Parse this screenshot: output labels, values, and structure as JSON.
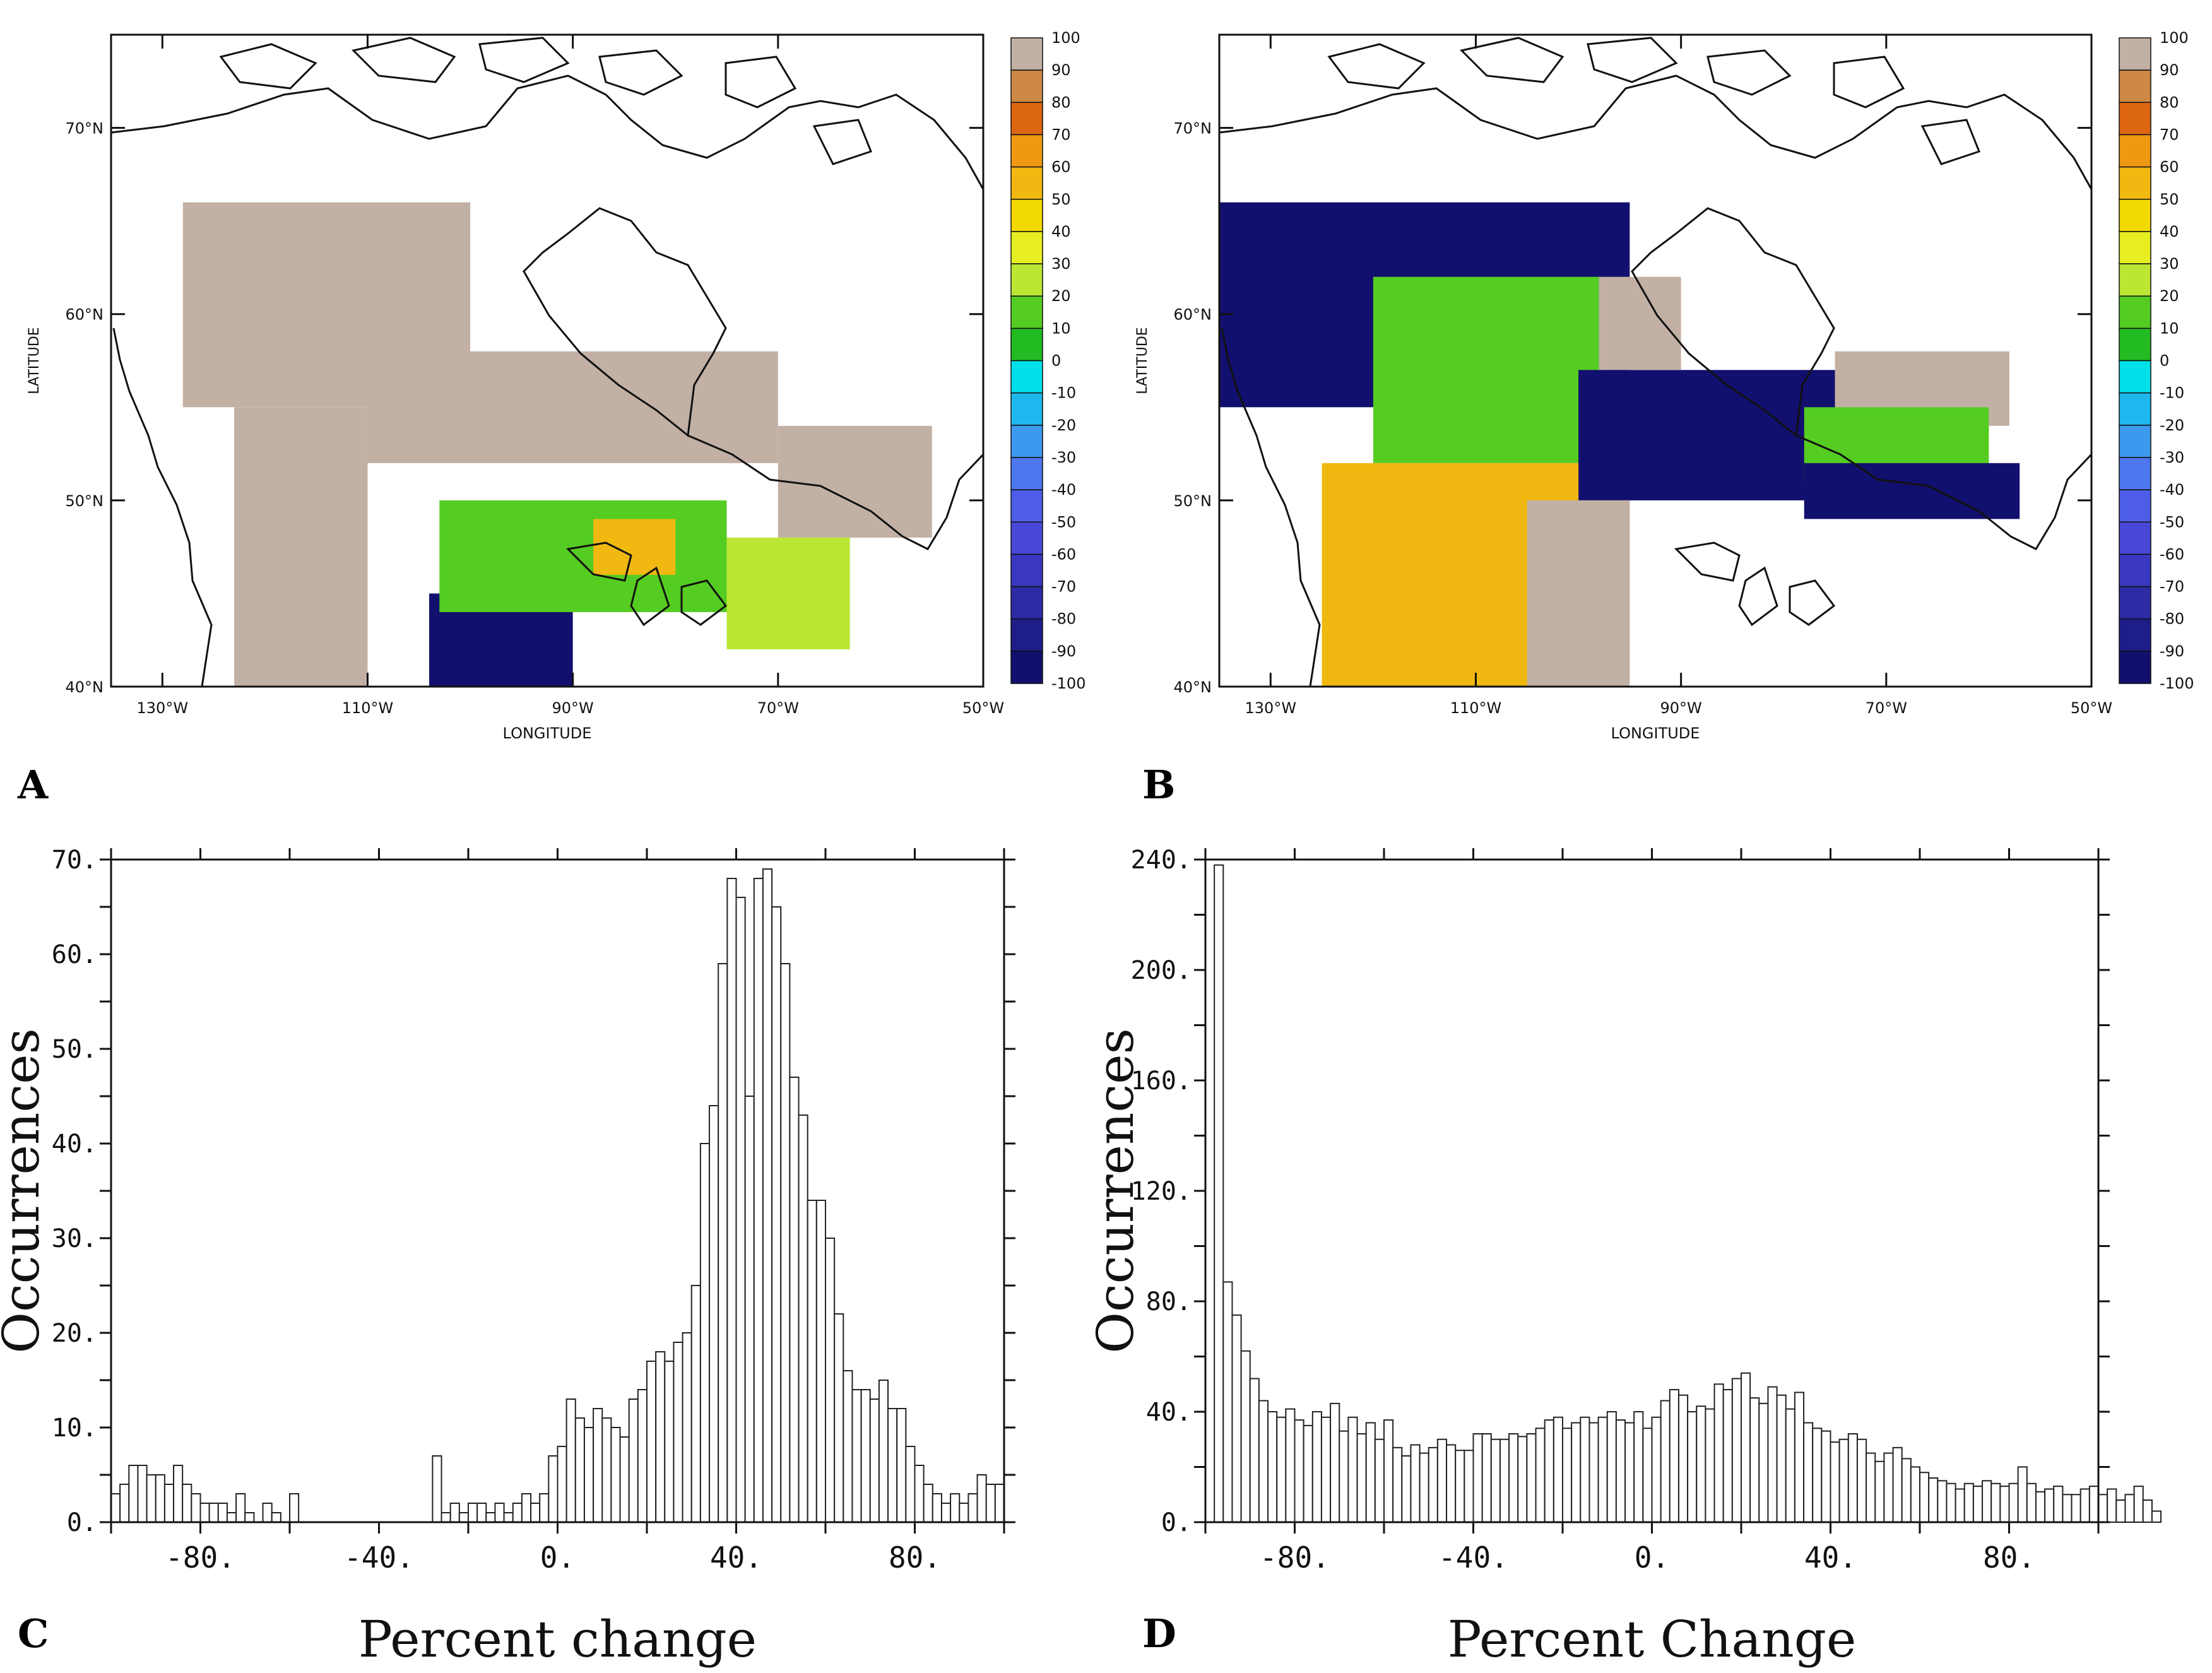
{
  "figure": {
    "panels": {
      "A": {
        "letter": "A"
      },
      "B": {
        "letter": "B"
      },
      "C": {
        "letter": "C"
      },
      "D": {
        "letter": "D"
      }
    }
  },
  "colors": {
    "land_fill": "#c2b0a4",
    "coast": "#111111",
    "bar_fill": "#ffffff",
    "bar_stroke": "#222222"
  },
  "colorbar": {
    "labels": [
      "100",
      "90",
      "80",
      "70",
      "60",
      "50",
      "40",
      "30",
      "20",
      "10",
      "0",
      "-10",
      "-20",
      "-30",
      "-40",
      "-50",
      "-60",
      "-70",
      "-80",
      "-90",
      "-100"
    ],
    "colors": [
      "#c2b0a4",
      "#cc8844",
      "#dd6611",
      "#ee9911",
      "#f0b810",
      "#f2d900",
      "#e6ee22",
      "#bbe633",
      "#55cc22",
      "#22bb22",
      "#00e0e8",
      "#1fb8ee",
      "#3d99ee",
      "#4c77ee",
      "#4d5de8",
      "#4848d8",
      "#3a38c0",
      "#2c2aa5",
      "#1f1d8a",
      "#12106e"
    ]
  },
  "chart_data": [
    {
      "type": "heatmap",
      "panel": "A",
      "xlabel": "LONGITUDE",
      "ylabel": "LATITUDE",
      "xlim": [
        -135,
        -50
      ],
      "ylim": [
        40,
        75
      ],
      "xticks": [
        -130,
        -110,
        -90,
        -70,
        -50
      ],
      "xtick_labels": [
        "130°W",
        "110°W",
        "90°W",
        "70°W",
        "50°W"
      ],
      "yticks": [
        40,
        50,
        60,
        70
      ],
      "ytick_labels": [
        "40°N",
        "50°N",
        "60°N",
        "70°N"
      ],
      "colorbar_range": [
        -100,
        100
      ],
      "colorbar_step": 10,
      "regions": [
        {
          "lon": [
            -128,
            -100
          ],
          "lat": [
            55,
            66
          ],
          "value": 100
        },
        {
          "lon": [
            -123,
            -110
          ],
          "lat": [
            40,
            55
          ],
          "value": 100
        },
        {
          "lon": [
            -110,
            -70
          ],
          "lat": [
            52,
            58
          ],
          "value": 100
        },
        {
          "lon": [
            -70,
            -55
          ],
          "lat": [
            48,
            54
          ],
          "value": 100
        },
        {
          "lon": [
            -104,
            -90
          ],
          "lat": [
            40,
            45
          ],
          "value": -100
        },
        {
          "lon": [
            -103,
            -75
          ],
          "lat": [
            44,
            50
          ],
          "value": 20
        },
        {
          "lon": [
            -88,
            -80
          ],
          "lat": [
            46,
            49
          ],
          "value": 60
        },
        {
          "lon": [
            -75,
            -63
          ],
          "lat": [
            42,
            48
          ],
          "value": 30
        }
      ]
    },
    {
      "type": "heatmap",
      "panel": "B",
      "xlabel": "LONGITUDE",
      "ylabel": "LATITUDE",
      "xlim": [
        -135,
        -50
      ],
      "ylim": [
        40,
        75
      ],
      "xticks": [
        -130,
        -110,
        -90,
        -70,
        -50
      ],
      "xtick_labels": [
        "130°W",
        "110°W",
        "90°W",
        "70°W",
        "50°W"
      ],
      "yticks": [
        40,
        50,
        60,
        70
      ],
      "ytick_labels": [
        "40°N",
        "50°N",
        "60°N",
        "70°N"
      ],
      "colorbar_range": [
        -100,
        100
      ],
      "colorbar_step": 10,
      "regions": [
        {
          "lon": [
            -135,
            -95
          ],
          "lat": [
            55,
            66
          ],
          "value": -100
        },
        {
          "lon": [
            -120,
            -98
          ],
          "lat": [
            52,
            62
          ],
          "value": 20
        },
        {
          "lon": [
            -100,
            -75
          ],
          "lat": [
            50,
            57
          ],
          "value": -100
        },
        {
          "lon": [
            -98,
            -90
          ],
          "lat": [
            57,
            62
          ],
          "value": 100
        },
        {
          "lon": [
            -125,
            -100
          ],
          "lat": [
            40,
            52
          ],
          "value": 60
        },
        {
          "lon": [
            -105,
            -95
          ],
          "lat": [
            40,
            50
          ],
          "value": 100
        },
        {
          "lon": [
            -75,
            -58
          ],
          "lat": [
            54,
            58
          ],
          "value": 100
        },
        {
          "lon": [
            -78,
            -60
          ],
          "lat": [
            51,
            55
          ],
          "value": 20
        },
        {
          "lon": [
            -78,
            -57
          ],
          "lat": [
            49,
            52
          ],
          "value": -100
        }
      ]
    },
    {
      "type": "bar",
      "panel": "C",
      "title": "",
      "xlabel": "Percent change",
      "ylabel": "Occurrences",
      "xlim": [
        -100,
        100
      ],
      "ylim": [
        0,
        70
      ],
      "xticks": [
        -80,
        -40,
        0,
        40,
        80
      ],
      "xtick_labels": [
        "-80.",
        "-40.",
        "0.",
        "40.",
        "80."
      ],
      "yticks": [
        0,
        10,
        20,
        30,
        40,
        50,
        60,
        70
      ],
      "ytick_labels": [
        "0.",
        "10.",
        "20.",
        "30.",
        "40.",
        "50.",
        "60.",
        "70."
      ],
      "bin_start": -100,
      "bin_width": 2,
      "values": [
        3,
        4,
        6,
        6,
        5,
        5,
        4,
        6,
        4,
        3,
        2,
        2,
        2,
        1,
        3,
        1,
        0,
        2,
        1,
        0,
        3,
        0,
        0,
        0,
        0,
        0,
        0,
        0,
        0,
        0,
        0,
        0,
        0,
        0,
        0,
        0,
        7,
        1,
        2,
        1,
        2,
        2,
        1,
        2,
        1,
        2,
        3,
        2,
        3,
        7,
        8,
        13,
        11,
        10,
        12,
        11,
        10,
        9,
        13,
        14,
        17,
        18,
        17,
        19,
        20,
        25,
        40,
        44,
        59,
        68,
        66,
        45,
        68,
        69,
        65,
        59,
        47,
        43,
        34,
        34,
        30,
        22,
        16,
        14,
        14,
        13,
        15,
        12,
        12,
        8,
        6,
        4,
        3,
        2,
        3,
        2,
        3,
        5,
        4,
        4
      ]
    },
    {
      "type": "bar",
      "panel": "D",
      "title": "",
      "xlabel": "Percent Change",
      "ylabel": "Occurrences",
      "xlim": [
        -100,
        100
      ],
      "ylim": [
        0,
        240
      ],
      "xticks": [
        -80,
        -40,
        0,
        40,
        80
      ],
      "xtick_labels": [
        "-80.",
        "-40.",
        "0.",
        "40.",
        "80."
      ],
      "yticks": [
        0,
        40,
        80,
        120,
        160,
        200,
        240
      ],
      "ytick_labels": [
        "0.",
        "40.",
        "80.",
        "120.",
        "160.",
        "200.",
        "240."
      ],
      "bin_start": -98,
      "bin_width": 2,
      "values": [
        238,
        87,
        75,
        62,
        52,
        44,
        40,
        38,
        41,
        37,
        35,
        40,
        38,
        43,
        33,
        38,
        32,
        36,
        30,
        37,
        27,
        24,
        28,
        25,
        27,
        30,
        28,
        26,
        26,
        32,
        32,
        30,
        30,
        32,
        31,
        32,
        34,
        37,
        38,
        34,
        36,
        38,
        36,
        38,
        40,
        37,
        36,
        40,
        34,
        38,
        44,
        48,
        46,
        40,
        42,
        41,
        50,
        48,
        52,
        54,
        45,
        43,
        49,
        46,
        41,
        47,
        36,
        34,
        33,
        29,
        30,
        32,
        30,
        25,
        22,
        25,
        27,
        23,
        20,
        18,
        16,
        15,
        14,
        12,
        14,
        13,
        15,
        14,
        13,
        14,
        20,
        14,
        11,
        12,
        13,
        10,
        10,
        12,
        13,
        10,
        12,
        8,
        10,
        13,
        8,
        4
      ]
    }
  ]
}
